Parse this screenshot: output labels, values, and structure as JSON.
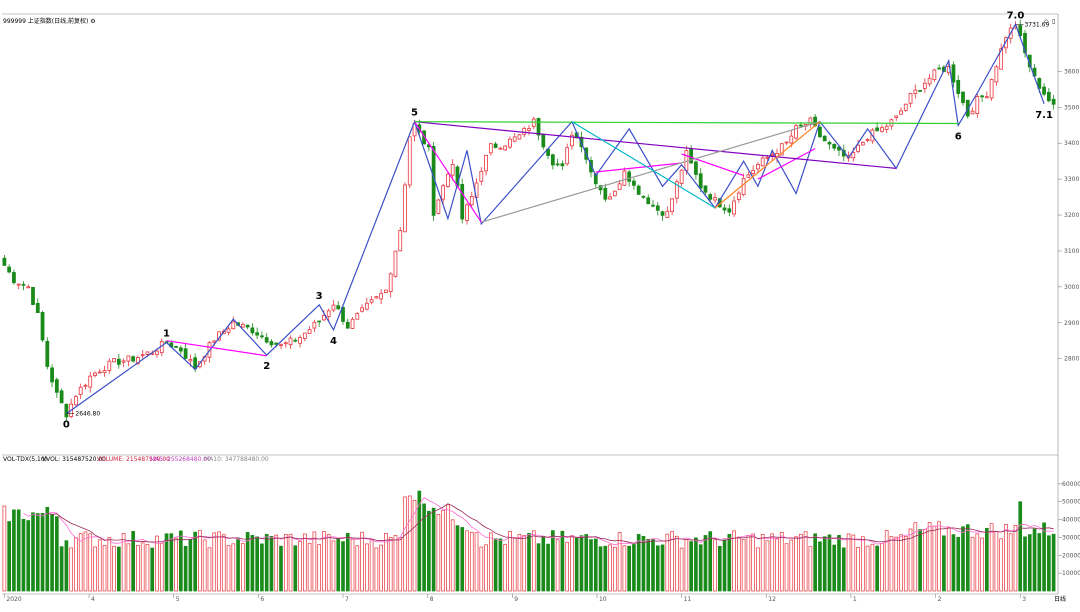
{
  "header": {
    "title": "999999 上证指数(日线,前复权) ⚙",
    "corner_icons": [
      "◇",
      "▯"
    ]
  },
  "volume_header": {
    "indicator": "VOL-TDX(5,10)",
    "vvol": "VVOL: 315487520.00",
    "volume": "VOLUME: 215487520.00",
    "ma5": "MA5: 255268480.00",
    "ma10": "MA10: 347788480.00"
  },
  "price_annotations": {
    "low": "2646.80",
    "high": "3731.69"
  },
  "x_tick_labels": [
    "2020",
    "4",
    "5",
    "6",
    "7",
    "8",
    "9",
    "10",
    "11",
    "12",
    "1",
    "2",
    "3"
  ],
  "x_end_label": "日线",
  "chart_data": [
    {
      "type": "candlestick",
      "ylim": [
        2540,
        3760
      ],
      "yticks": [
        2800,
        2900,
        3000,
        3100,
        3200,
        3300,
        3400,
        3500,
        3600
      ],
      "price_path": [
        [
          0,
          3060
        ],
        [
          2,
          3020
        ],
        [
          5,
          3000
        ],
        [
          7,
          2920
        ],
        [
          9,
          2780
        ],
        [
          11,
          2700
        ],
        [
          13,
          2647
        ],
        [
          15,
          2700
        ],
        [
          18,
          2750
        ],
        [
          20,
          2770
        ],
        [
          23,
          2790
        ],
        [
          27,
          2800
        ],
        [
          31,
          2820
        ],
        [
          34,
          2845
        ],
        [
          37,
          2825
        ],
        [
          40,
          2775
        ],
        [
          44,
          2855
        ],
        [
          48,
          2900
        ],
        [
          52,
          2880
        ],
        [
          55,
          2855
        ],
        [
          58,
          2835
        ],
        [
          62,
          2860
        ],
        [
          66,
          2905
        ],
        [
          69,
          2955
        ],
        [
          72,
          2890
        ],
        [
          76,
          2945
        ],
        [
          80,
          2990
        ],
        [
          83,
          3160
        ],
        [
          85,
          3420
        ],
        [
          86,
          3450
        ],
        [
          89,
          3380
        ],
        [
          90,
          3210
        ],
        [
          92,
          3280
        ],
        [
          94,
          3350
        ],
        [
          96,
          3190
        ],
        [
          98,
          3250
        ],
        [
          100,
          3330
        ],
        [
          102,
          3390
        ],
        [
          105,
          3400
        ],
        [
          108,
          3420
        ],
        [
          111,
          3460
        ],
        [
          113,
          3400
        ],
        [
          115,
          3350
        ],
        [
          117,
          3330
        ],
        [
          119,
          3430
        ],
        [
          121,
          3400
        ],
        [
          123,
          3320
        ],
        [
          126,
          3250
        ],
        [
          128,
          3260
        ],
        [
          130,
          3330
        ],
        [
          132,
          3280
        ],
        [
          135,
          3240
        ],
        [
          137,
          3215
        ],
        [
          139,
          3205
        ],
        [
          143,
          3370
        ],
        [
          146,
          3280
        ],
        [
          149,
          3240
        ],
        [
          152,
          3215
        ],
        [
          155,
          3300
        ],
        [
          158,
          3340
        ],
        [
          161,
          3370
        ],
        [
          164,
          3400
        ],
        [
          166,
          3440
        ],
        [
          169,
          3460
        ],
        [
          171,
          3420
        ],
        [
          174,
          3380
        ],
        [
          177,
          3355
        ],
        [
          181,
          3420
        ],
        [
          184,
          3440
        ],
        [
          187,
          3470
        ],
        [
          190,
          3530
        ],
        [
          193,
          3570
        ],
        [
          196,
          3605
        ],
        [
          198,
          3610
        ],
        [
          200,
          3545
        ],
        [
          202,
          3480
        ],
        [
          204,
          3520
        ],
        [
          206,
          3540
        ],
        [
          208,
          3620
        ],
        [
          210,
          3700
        ],
        [
          212,
          3731
        ],
        [
          214,
          3650
        ],
        [
          216,
          3580
        ],
        [
          218,
          3540
        ],
        [
          220,
          3500
        ]
      ],
      "waves": [
        {
          "label": "0",
          "day": 13,
          "price": 2646.8
        },
        {
          "label": "1",
          "day": 34,
          "price": 2845
        },
        {
          "label": "2",
          "day": 55,
          "price": 2810
        },
        {
          "label": "3",
          "day": 66,
          "price": 2950
        },
        {
          "label": "4",
          "day": 69,
          "price": 2880
        },
        {
          "label": "5",
          "day": 86,
          "price": 3460
        },
        {
          "label": "6",
          "day": 200,
          "price": 3450
        },
        {
          "label": "7.0",
          "day": 212,
          "price": 3731
        },
        {
          "label": "7.1",
          "day": 218,
          "price": 3510
        }
      ],
      "trend_lines": [
        {
          "color": "#3b4fc8",
          "points": [
            [
              13,
              2647
            ],
            [
              34,
              2845
            ],
            [
              40,
              2770
            ],
            [
              48,
              2910
            ],
            [
              55,
              2810
            ],
            [
              66,
              2950
            ],
            [
              69,
              2880
            ],
            [
              86,
              3460
            ],
            [
              93,
              3190
            ],
            [
              97,
              3380
            ],
            [
              100,
              3175
            ],
            [
              119,
              3460
            ],
            [
              124,
              3310
            ],
            [
              131,
              3440
            ],
            [
              138,
              3280
            ],
            [
              142,
              3340
            ],
            [
              149,
              3220
            ],
            [
              155,
              3350
            ],
            [
              158,
              3280
            ],
            [
              161,
              3380
            ],
            [
              166,
              3260
            ],
            [
              171,
              3460
            ],
            [
              177,
              3360
            ],
            [
              181,
              3440
            ],
            [
              187,
              3330
            ],
            [
              198,
              3630
            ],
            [
              200,
              3450
            ],
            [
              204,
              3540
            ],
            [
              212,
              3731
            ],
            [
              218,
              3510
            ]
          ]
        },
        {
          "color": "#ff00ff",
          "points": [
            [
              34,
              2850
            ],
            [
              55,
              2808
            ]
          ]
        },
        {
          "color": "#ff00ff",
          "points": [
            [
              86,
              3460
            ],
            [
              100,
              3180
            ]
          ]
        },
        {
          "color": "#ff00ff",
          "points": [
            [
              124,
              3320
            ],
            [
              142,
              3345
            ]
          ]
        },
        {
          "color": "#ff00ff",
          "points": [
            [
              142,
              3370
            ],
            [
              155,
              3310
            ]
          ]
        },
        {
          "color": "#ff00ff",
          "points": [
            [
              158,
              3300
            ],
            [
              170,
              3385
            ]
          ]
        },
        {
          "color": "#8000c0",
          "points": [
            [
              86,
              3460
            ],
            [
              187,
              3330
            ]
          ]
        },
        {
          "color": "#30d030",
          "points": [
            [
              86,
              3460
            ],
            [
              200,
              3455
            ]
          ]
        },
        {
          "color": "#999999",
          "points": [
            [
              100,
              3180
            ],
            [
              171,
              3460
            ]
          ]
        },
        {
          "color": "#00b8c8",
          "points": [
            [
              119,
              3460
            ],
            [
              149,
              3220
            ]
          ]
        },
        {
          "color": "#ff8020",
          "points": [
            [
              149,
              3220
            ],
            [
              171,
              3460
            ]
          ]
        }
      ]
    },
    {
      "type": "bar",
      "series": [
        {
          "name": "VOLUME",
          "values": []
        }
      ],
      "ylim": [
        0,
        70000
      ],
      "yticks": [
        10000,
        20000,
        30000,
        40000,
        50000,
        60000
      ]
    }
  ],
  "colors": {
    "up": "#e8343c",
    "down": "#1a8a1a",
    "ma_pink": "#ff6ad5",
    "ma_dark": "#9a2a5a"
  }
}
